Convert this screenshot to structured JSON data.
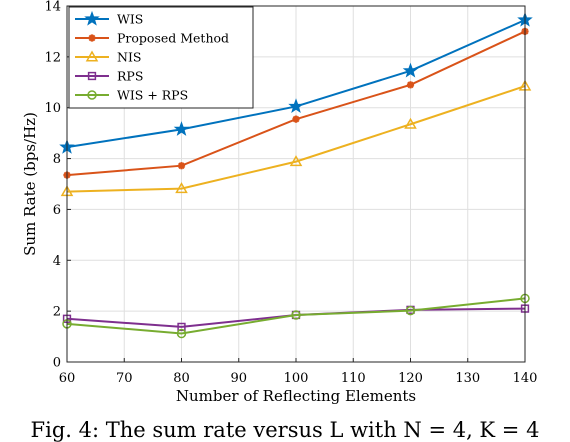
{
  "colors": {
    "WIS": "#0072BD",
    "Proposed Method": "#D95319",
    "NIS": "#EDB120",
    "RPS": "#7E2F8E",
    "WIS + RPS": "#77AC30"
  },
  "caption": "Fig. 4: The sum rate versus L with N = 4, K = 4",
  "chart_data": {
    "type": "line",
    "xlabel": "Number of Reflecting Elements",
    "ylabel": "Sum Rate (bps/Hz)",
    "xlim": [
      60,
      140
    ],
    "ylim": [
      0,
      14
    ],
    "xticks": [
      60,
      70,
      80,
      90,
      100,
      110,
      120,
      130,
      140
    ],
    "yticks": [
      0,
      2,
      4,
      6,
      8,
      10,
      12,
      14
    ],
    "grid": true,
    "legend_position": "top-left",
    "x": [
      60,
      80,
      100,
      120,
      140
    ],
    "series": [
      {
        "name": "WIS",
        "marker": "star",
        "values": [
          8.45,
          9.15,
          10.05,
          11.45,
          13.45
        ]
      },
      {
        "name": "Proposed Method",
        "marker": "asterisk",
        "values": [
          7.35,
          7.72,
          9.55,
          10.9,
          13.0
        ]
      },
      {
        "name": "NIS",
        "marker": "triangle",
        "values": [
          6.7,
          6.82,
          7.88,
          9.35,
          10.85
        ]
      },
      {
        "name": "RPS",
        "marker": "square",
        "values": [
          1.7,
          1.38,
          1.85,
          2.05,
          2.1
        ]
      },
      {
        "name": "WIS + RPS",
        "marker": "circle",
        "values": [
          1.5,
          1.12,
          1.85,
          2.02,
          2.5
        ]
      }
    ]
  }
}
